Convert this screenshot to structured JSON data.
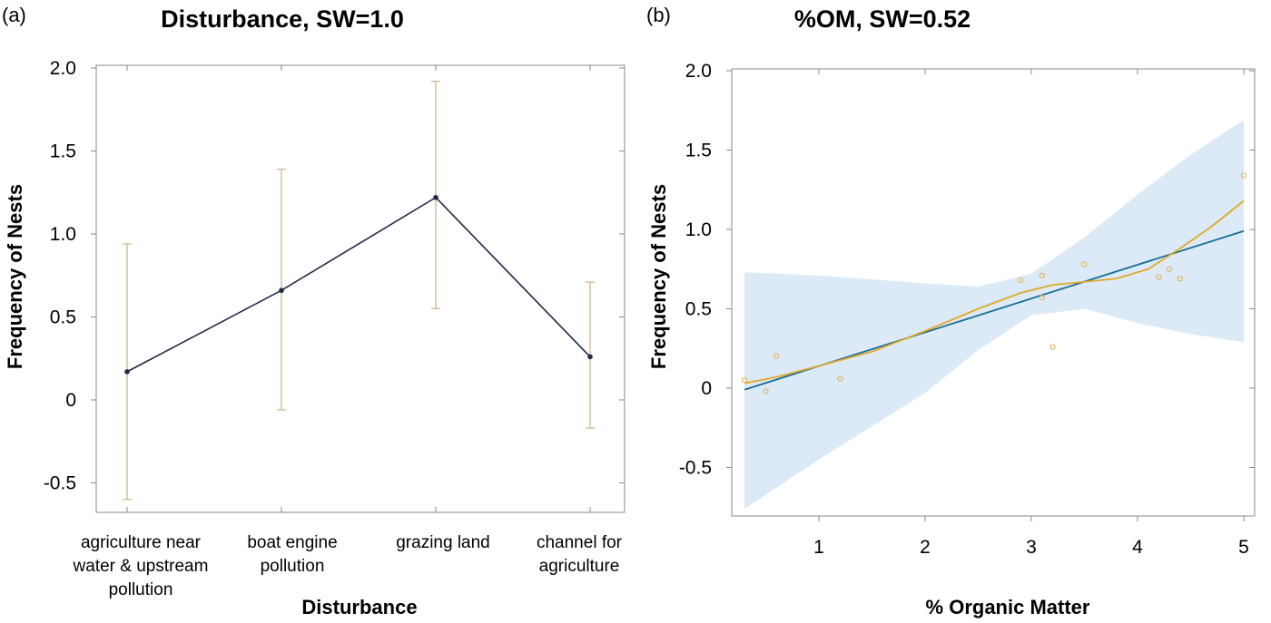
{
  "chart_data": [
    {
      "type": "line",
      "panel_label": "(a)",
      "title": "Disturbance, SW=1.0",
      "xlabel": "Disturbance",
      "ylabel": "Frequency of Nests",
      "ylim": [
        -0.7,
        2.0
      ],
      "y_ticks": [
        -0.5,
        0,
        0.5,
        1.0,
        1.5,
        2.0
      ],
      "y_tick_labels": [
        "-0.5",
        "0",
        "0.5",
        "1.0",
        "1.5",
        "2.0"
      ],
      "categories": [
        [
          "agriculture near",
          "water & upstream",
          "pollution"
        ],
        [
          "boat engine",
          "pollution"
        ],
        [
          "grazing land"
        ],
        [
          "channel for",
          "agriculture"
        ]
      ],
      "values": [
        0.17,
        0.66,
        1.22,
        0.26
      ],
      "error_low": [
        -0.6,
        -0.06,
        0.55,
        -0.17
      ],
      "error_high": [
        0.94,
        1.39,
        1.92,
        0.71
      ],
      "colors": {
        "line": "#1f2a44",
        "error_bars": "#c9b28a"
      }
    },
    {
      "type": "scatter",
      "panel_label": "(b)",
      "title": "%OM, SW=0.52",
      "xlabel": "% Organic Matter",
      "ylabel": "Frequency of Nests",
      "xlim": [
        0.25,
        5.1
      ],
      "ylim": [
        -0.85,
        2.0
      ],
      "x_ticks": [
        1,
        2,
        3,
        4,
        5
      ],
      "x_tick_labels": [
        "1",
        "2",
        "3",
        "4",
        "5"
      ],
      "y_ticks": [
        -0.5,
        0,
        0.5,
        1.0,
        1.5,
        2.0
      ],
      "y_tick_labels": [
        "-0.5",
        "0",
        "0.5",
        "1.0",
        "1.5",
        "2.0"
      ],
      "points": {
        "x": [
          0.3,
          0.5,
          0.6,
          1.2,
          2.9,
          3.1,
          3.1,
          3.2,
          3.5,
          4.2,
          4.3,
          4.4,
          5.0
        ],
        "y": [
          0.05,
          -0.02,
          0.2,
          0.06,
          0.68,
          0.71,
          0.57,
          0.26,
          0.78,
          0.7,
          0.75,
          0.69,
          1.34
        ]
      },
      "fit_line": {
        "x": [
          0.3,
          5.0
        ],
        "y": [
          -0.01,
          0.99
        ]
      },
      "confidence_band": {
        "x": [
          0.3,
          1.0,
          2.0,
          2.5,
          3.0,
          3.5,
          4.0,
          4.5,
          5.0
        ],
        "upper": [
          0.73,
          0.71,
          0.66,
          0.64,
          0.72,
          0.95,
          1.22,
          1.47,
          1.69
        ],
        "lower": [
          -0.76,
          -0.45,
          -0.03,
          0.24,
          0.46,
          0.5,
          0.41,
          0.34,
          0.29
        ]
      },
      "smooth_curve": {
        "x": [
          0.3,
          0.6,
          1.0,
          1.5,
          2.0,
          2.5,
          2.9,
          3.2,
          3.5,
          3.8,
          4.1,
          4.4,
          4.7,
          5.0
        ],
        "y": [
          0.03,
          0.07,
          0.14,
          0.23,
          0.36,
          0.5,
          0.6,
          0.65,
          0.67,
          0.69,
          0.75,
          0.88,
          1.02,
          1.18
        ]
      },
      "colors": {
        "points": "#e0b050",
        "fit_line": "#1a6e96",
        "smooth": "#e0a92a",
        "band": "#dbeaf6"
      }
    }
  ]
}
